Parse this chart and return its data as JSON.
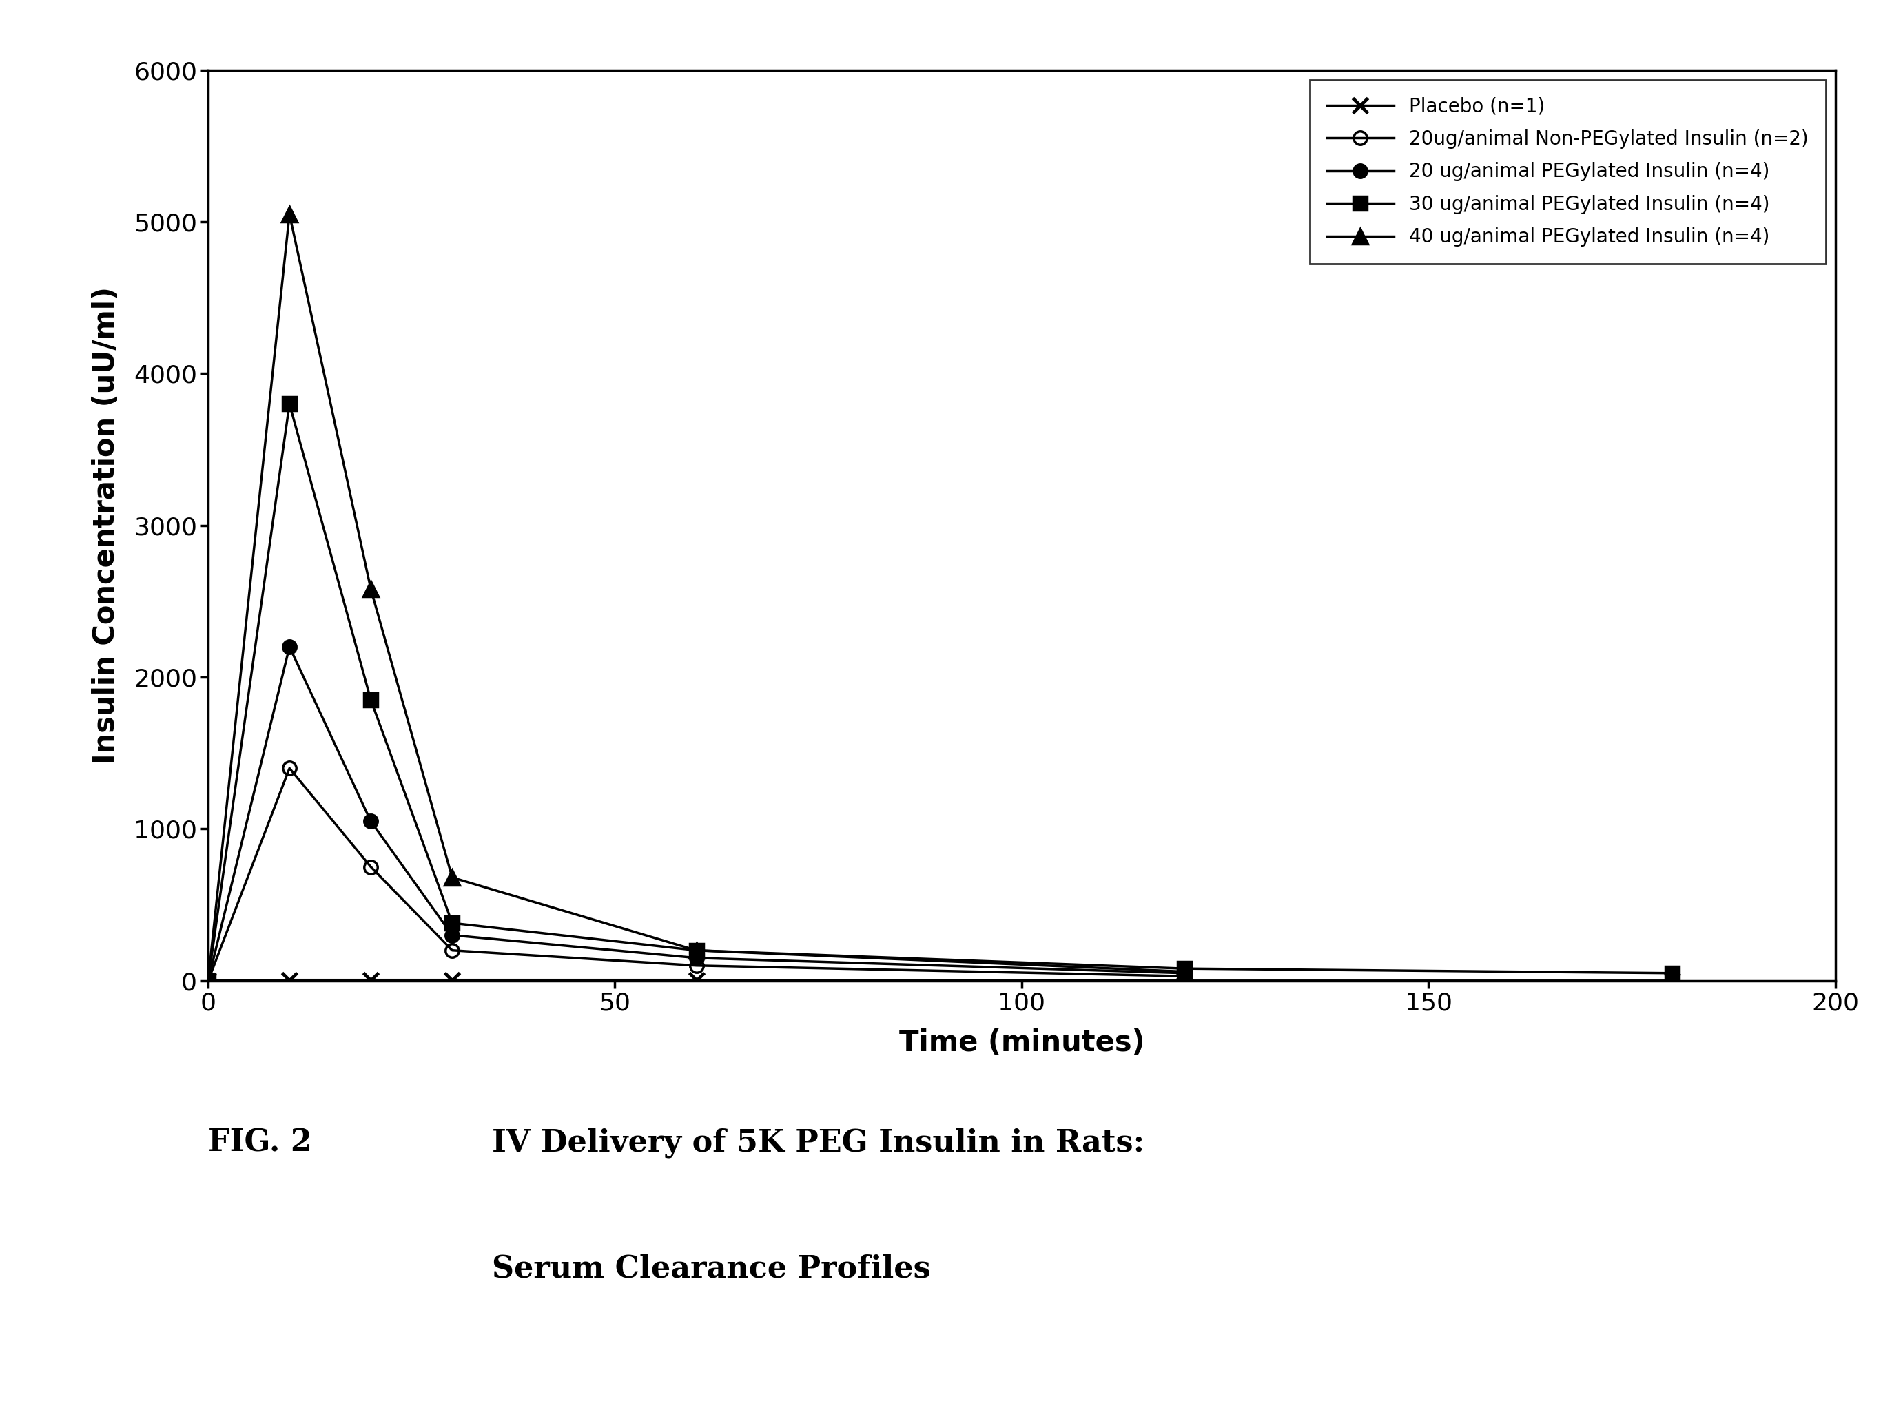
{
  "xlabel": "Time (minutes)",
  "ylabel": "Insulin Concentration (uU/ml)",
  "xlim": [
    0,
    200
  ],
  "ylim": [
    0,
    6000
  ],
  "xticks": [
    0,
    50,
    100,
    150,
    200
  ],
  "yticks": [
    0,
    1000,
    2000,
    3000,
    4000,
    5000,
    6000
  ],
  "series": [
    {
      "label": "Placebo (n=1)",
      "x": [
        0,
        10,
        20,
        30,
        60,
        120,
        180
      ],
      "y": [
        0,
        5,
        5,
        5,
        5,
        0,
        0
      ],
      "marker": "x",
      "markersize": 16,
      "linewidth": 2.5,
      "color": "#000000",
      "fillstyle": "none",
      "markeredgewidth": 3.5
    },
    {
      "label": "20ug/animal Non-PEGylated Insulin (n=2)",
      "x": [
        0,
        10,
        20,
        30,
        60,
        120
      ],
      "y": [
        0,
        1400,
        750,
        200,
        100,
        30
      ],
      "marker": "o",
      "markersize": 14,
      "linewidth": 2.5,
      "color": "#000000",
      "fillstyle": "none",
      "markeredgewidth": 2.5
    },
    {
      "label": "20 ug/animal PEGylated Insulin (n=4)",
      "x": [
        0,
        10,
        20,
        30,
        60,
        120
      ],
      "y": [
        0,
        2200,
        1050,
        300,
        150,
        50
      ],
      "marker": "o",
      "markersize": 14,
      "linewidth": 2.5,
      "color": "#000000",
      "fillstyle": "full",
      "markeredgewidth": 2.5
    },
    {
      "label": "30 ug/animal PEGylated Insulin (n=4)",
      "x": [
        0,
        10,
        20,
        30,
        60,
        120,
        180
      ],
      "y": [
        0,
        3800,
        1850,
        380,
        200,
        80,
        50
      ],
      "marker": "s",
      "markersize": 14,
      "linewidth": 2.5,
      "color": "#000000",
      "fillstyle": "full",
      "markeredgewidth": 2.5
    },
    {
      "label": "40 ug/animal PEGylated Insulin (n=4)",
      "x": [
        0,
        10,
        20,
        30,
        60,
        120
      ],
      "y": [
        0,
        5050,
        2580,
        680,
        200,
        60
      ],
      "marker": "^",
      "markersize": 16,
      "linewidth": 2.5,
      "color": "#000000",
      "fillstyle": "full",
      "markeredgewidth": 2.5
    }
  ],
  "legend_loc": "upper right",
  "background_color": "#ffffff",
  "fig_number": "FIG. 2",
  "fig_title_line1": "IV Delivery of 5K PEG Insulin in Rats:",
  "fig_title_line2": "Serum Clearance Profiles",
  "axis_label_fontsize": 30,
  "tick_fontsize": 26,
  "legend_fontsize": 20,
  "caption_fontsize": 32
}
